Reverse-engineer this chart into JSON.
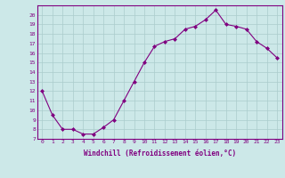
{
  "x": [
    0,
    1,
    2,
    3,
    4,
    5,
    6,
    7,
    8,
    9,
    10,
    11,
    12,
    13,
    14,
    15,
    16,
    17,
    18,
    19,
    20,
    21,
    22,
    23
  ],
  "y": [
    12,
    9.5,
    8,
    8,
    7.5,
    7.5,
    8.2,
    9,
    11,
    13,
    15,
    16.7,
    17.2,
    17.5,
    18.5,
    18.8,
    19.5,
    20.5,
    19,
    18.8,
    18.5,
    17.2,
    16.5,
    15.5
  ],
  "line_color": "#800080",
  "marker": "D",
  "marker_size": 2,
  "bg_color": "#cce8e8",
  "grid_color": "#aacccc",
  "xlabel": "Windchill (Refroidissement éolien,°C)",
  "xlabel_color": "#800080",
  "tick_color": "#800080",
  "xlim": [
    -0.5,
    23.5
  ],
  "ylim": [
    7,
    21
  ],
  "yticks": [
    7,
    8,
    9,
    10,
    11,
    12,
    13,
    14,
    15,
    16,
    17,
    18,
    19,
    20
  ],
  "xticks": [
    0,
    1,
    2,
    3,
    4,
    5,
    6,
    7,
    8,
    9,
    10,
    11,
    12,
    13,
    14,
    15,
    16,
    17,
    18,
    19,
    20,
    21,
    22,
    23
  ]
}
